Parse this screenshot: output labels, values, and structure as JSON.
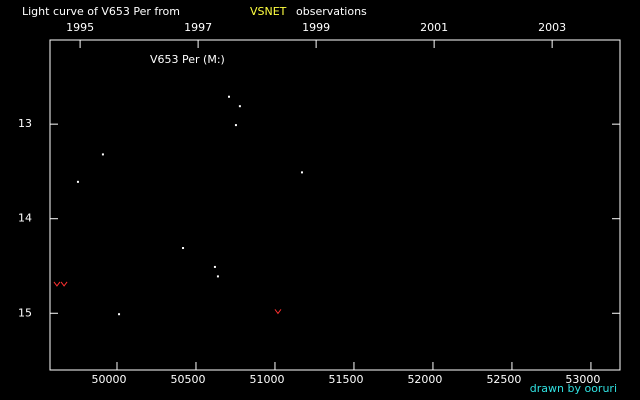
{
  "chart_data": {
    "type": "scatter",
    "title": "Light curve of V653 Per from",
    "title_highlight": "VSNET",
    "title_end": "observations",
    "label": "V653 Per (M:)",
    "credit": "drawn by ooruri",
    "xlim": [
      49576,
      53184
    ],
    "xticks": [
      50000,
      50500,
      51000,
      51500,
      52000,
      52500,
      53000
    ],
    "x2lim": [
      1994.49,
      2004.15
    ],
    "x2ticks": [
      1995,
      1997,
      1999,
      2001,
      2003
    ],
    "ylim": [
      15.6,
      12.11
    ],
    "yticks": [
      13,
      14,
      15
    ],
    "series": [
      {
        "color": "#ffffff",
        "marker": "dot",
        "x": [
          49753,
          49911,
          50013,
          50418,
          50620,
          50639,
          50709,
          50753,
          50778,
          51171
        ],
        "values": [
          13.61,
          13.32,
          15.01,
          14.31,
          14.51,
          14.61,
          12.71,
          13.01,
          12.81,
          13.51
        ]
      },
      {
        "color": "#ff3030",
        "marker": "v",
        "x": [
          49620,
          49665,
          51019
        ],
        "values": [
          14.69,
          14.69,
          14.98
        ]
      }
    ]
  }
}
